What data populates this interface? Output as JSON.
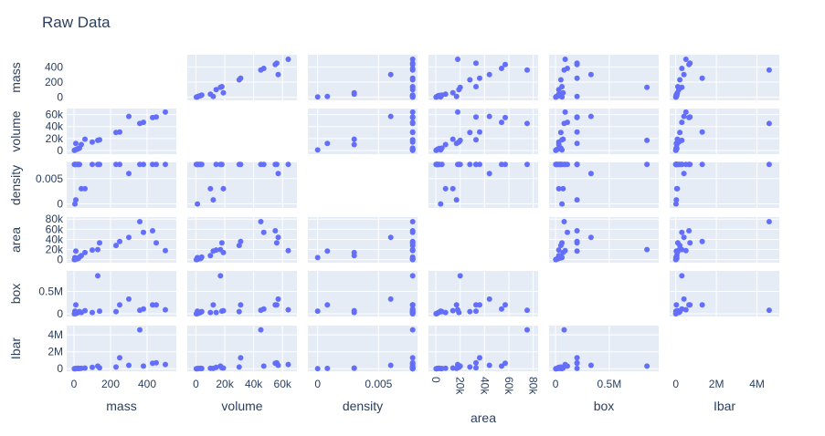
{
  "chart_data": {
    "type": "scatter",
    "subtype": "scatter_matrix",
    "title": "Raw Data",
    "dimensions": [
      "mass",
      "volume",
      "density",
      "area",
      "box",
      "Ibar"
    ],
    "diagonal_visible": false,
    "grid": true,
    "background_color": "#e5ecf6",
    "marker_color": "#636efa",
    "axes": {
      "mass": {
        "range": [
          -40,
          560
        ],
        "ticks": [
          0,
          200,
          400
        ],
        "tick_labels": [
          "0",
          "200",
          "400"
        ],
        "y_ticks": [
          0,
          200,
          400
        ],
        "y_tick_labels": [
          "0",
          "200",
          "400"
        ]
      },
      "volume": {
        "range": [
          -6000,
          70000
        ],
        "ticks": [
          0,
          20000,
          40000,
          60000
        ],
        "tick_labels": [
          "0",
          "20k",
          "40k",
          "60k"
        ],
        "y_ticks": [
          0,
          20000,
          40000,
          60000
        ],
        "y_tick_labels": [
          "0",
          "20k",
          "40k",
          "60k"
        ]
      },
      "density": {
        "range": [
          -0.0008,
          0.0082
        ],
        "ticks": [
          0,
          0.005
        ],
        "tick_labels": [
          "0",
          "0.005"
        ],
        "y_ticks": [
          0,
          0.005
        ],
        "y_tick_labels": [
          "0",
          "0.005"
        ]
      },
      "area": {
        "range": [
          -6000,
          84000
        ],
        "ticks": [
          0,
          20000,
          40000,
          60000,
          80000
        ],
        "tick_labels": [
          "0",
          "20k",
          "40k",
          "60k",
          "80k"
        ],
        "y_ticks": [
          0,
          20000,
          40000,
          60000,
          80000
        ],
        "y_tick_labels": [
          "0",
          "20k",
          "40k",
          "60k",
          "80k"
        ],
        "x_tick_angle": 90
      },
      "box": {
        "range": [
          -60000,
          960000
        ],
        "ticks": [
          0,
          500000
        ],
        "tick_labels": [
          "0",
          "0.5M"
        ],
        "y_ticks": [
          0,
          500000
        ],
        "y_tick_labels": [
          "0",
          "0.5M"
        ]
      },
      "Ibar": {
        "range": [
          -300000,
          5100000
        ],
        "ticks": [
          0,
          2000000,
          4000000
        ],
        "tick_labels": [
          "0",
          "2M",
          "4M"
        ],
        "y_ticks": [
          0,
          2000000,
          4000000
        ],
        "y_tick_labels": [
          "0",
          "2M",
          "4M"
        ]
      }
    },
    "points": [
      {
        "mass": 500,
        "volume": 64000,
        "density": 0.0078,
        "area": 18000,
        "box": 90000,
        "Ibar": 500000
      },
      {
        "mass": 430,
        "volume": 55000,
        "density": 0.0078,
        "area": 57000,
        "box": 200000,
        "Ibar": 650000
      },
      {
        "mass": 450,
        "volume": 56000,
        "density": 0.0078,
        "area": 33000,
        "box": 200000,
        "Ibar": 700000
      },
      {
        "mass": 360,
        "volume": 45000,
        "density": 0.0078,
        "area": 75000,
        "box": 80000,
        "Ibar": 4600000
      },
      {
        "mass": 380,
        "volume": 47000,
        "density": 0.0078,
        "area": 54000,
        "box": 110000,
        "Ibar": 300000
      },
      {
        "mass": 300,
        "volume": 57000,
        "density": 0.006,
        "area": 44000,
        "box": 330000,
        "Ibar": 400000
      },
      {
        "mass": 250,
        "volume": 31000,
        "density": 0.0078,
        "area": 36000,
        "box": 200000,
        "Ibar": 1300000
      },
      {
        "mass": 230,
        "volume": 30000,
        "density": 0.0078,
        "area": 28000,
        "box": 50000,
        "Ibar": 200000
      },
      {
        "mass": 140,
        "volume": 18000,
        "density": 0.0078,
        "area": 33000,
        "box": 60000,
        "Ibar": 100000
      },
      {
        "mass": 130,
        "volume": 17000,
        "density": 0.0078,
        "area": 20000,
        "box": 850000,
        "Ibar": 300000
      },
      {
        "mass": 100,
        "volume": 14000,
        "density": 0.0078,
        "area": 19000,
        "box": 30000,
        "Ibar": 150000
      },
      {
        "mass": 60,
        "volume": 19000,
        "density": 0.003,
        "area": 14000,
        "box": 70000,
        "Ibar": 80000
      },
      {
        "mass": 40,
        "volume": 10000,
        "density": 0.003,
        "area": 8000,
        "box": 30000,
        "Ibar": 50000
      },
      {
        "mass": 10,
        "volume": 12000,
        "density": 0.0008,
        "area": 17000,
        "box": 200000,
        "Ibar": 30000
      },
      {
        "mass": 5,
        "volume": 1000,
        "density": 0.0,
        "area": 4000,
        "box": 60000,
        "Ibar": 10000
      },
      {
        "mass": 30,
        "volume": 4000,
        "density": 0.0078,
        "area": 5000,
        "box": 50000,
        "Ibar": 20000
      },
      {
        "mass": 25,
        "volume": 3500,
        "density": 0.0078,
        "area": 3000,
        "box": 40000,
        "Ibar": 50000
      },
      {
        "mass": 20,
        "volume": 2800,
        "density": 0.0078,
        "area": 2000,
        "box": 25000,
        "Ibar": 40000
      },
      {
        "mass": 15,
        "volume": 2000,
        "density": 0.0078,
        "area": 1500,
        "box": 15000,
        "Ibar": 30000
      },
      {
        "mass": 8,
        "volume": 1100,
        "density": 0.0078,
        "area": 800,
        "box": 8000,
        "Ibar": 10000
      },
      {
        "mass": 5,
        "volume": 700,
        "density": 0.0078,
        "area": 500,
        "box": 5000,
        "Ibar": 5000
      },
      {
        "mass": 2,
        "volume": 300,
        "density": 0.0078,
        "area": 200,
        "box": 2000,
        "Ibar": 2000
      }
    ]
  }
}
